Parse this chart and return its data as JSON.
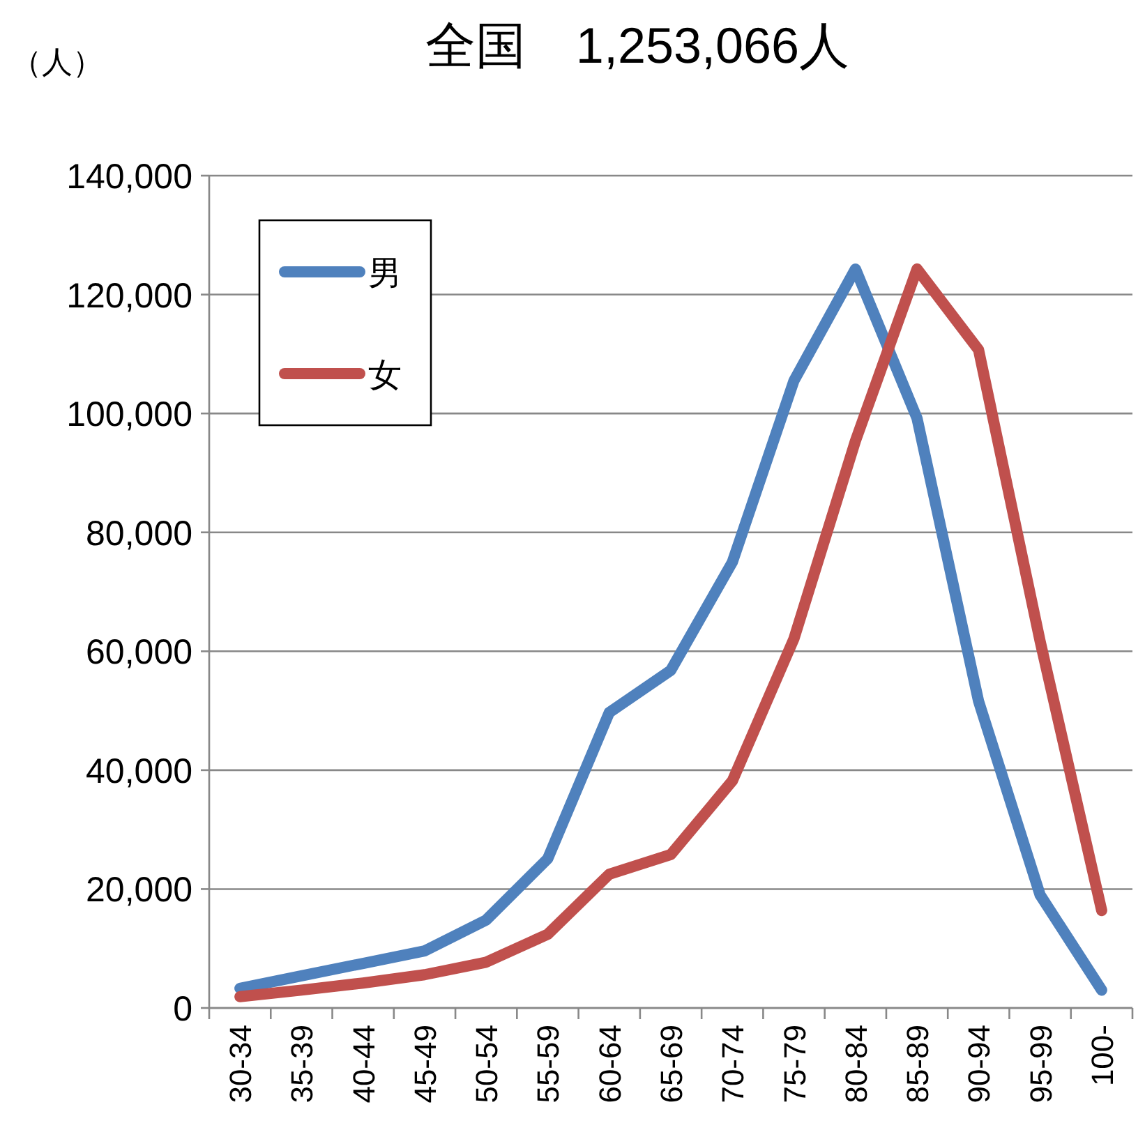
{
  "chart_data": {
    "type": "line",
    "title": "全国　1,253,066人",
    "ylabel": "（人）",
    "categories": [
      "30-34",
      "35-39",
      "40-44",
      "45-49",
      "50-54",
      "55-59",
      "60-64",
      "65-69",
      "70-74",
      "75-79",
      "80-84",
      "85-89",
      "90-94",
      "95-99",
      "100-"
    ],
    "series": [
      {
        "name": "男",
        "color": "#4f81bd",
        "values": [
          3300,
          5400,
          7500,
          9600,
          14800,
          25100,
          49700,
          56800,
          75000,
          105500,
          124300,
          99200,
          51600,
          19000,
          3000
        ]
      },
      {
        "name": "女",
        "color": "#c0504d",
        "values": [
          1900,
          3000,
          4200,
          5600,
          7700,
          12400,
          22500,
          25800,
          38200,
          62100,
          95400,
          124300,
          110700,
          61700,
          16400
        ]
      }
    ],
    "ylim": [
      0,
      140000
    ],
    "yticks": [
      {
        "value": 0,
        "label": "0"
      },
      {
        "value": 20000,
        "label": "20,000"
      },
      {
        "value": 40000,
        "label": "40,000"
      },
      {
        "value": 60000,
        "label": "60,000"
      },
      {
        "value": 80000,
        "label": "80,000"
      },
      {
        "value": 100000,
        "label": "100,000"
      },
      {
        "value": 120000,
        "label": "120,000"
      },
      {
        "value": 140000,
        "label": "140,000"
      }
    ],
    "grid": "y",
    "legend": "top left",
    "marker": "none",
    "line_style": "solid"
  }
}
